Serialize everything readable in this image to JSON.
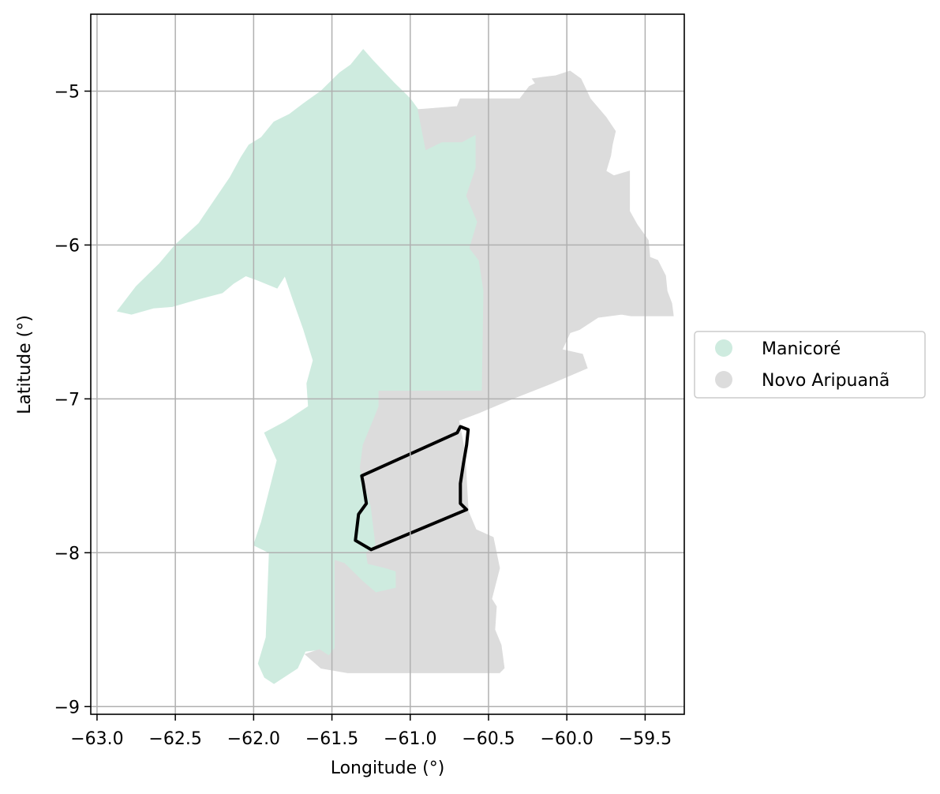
{
  "chart_data": {
    "type": "choropleth-map",
    "xlabel": "Longitude (°)",
    "ylabel": "Latitude (°)",
    "xlim": [
      -63.04,
      -59.25
    ],
    "ylim": [
      -9.05,
      -4.5
    ],
    "x_ticks": [
      {
        "value": -63.0,
        "label": "−63.0"
      },
      {
        "value": -62.5,
        "label": "−62.5"
      },
      {
        "value": -62.0,
        "label": "−62.0"
      },
      {
        "value": -61.5,
        "label": "−61.5"
      },
      {
        "value": -61.0,
        "label": "−61.0"
      },
      {
        "value": -60.5,
        "label": "−60.5"
      },
      {
        "value": -60.0,
        "label": "−60.0"
      },
      {
        "value": -59.5,
        "label": "−59.5"
      }
    ],
    "y_ticks": [
      {
        "value": -5,
        "label": "−5"
      },
      {
        "value": -6,
        "label": "−6"
      },
      {
        "value": -7,
        "label": "−7"
      },
      {
        "value": -8,
        "label": "−8"
      },
      {
        "value": -9,
        "label": "−9"
      }
    ],
    "grid": true,
    "legend_position": "right",
    "regions": [
      {
        "name": "Manicoré",
        "color": "#ceebdf",
        "polygon": [
          [
            -62.87,
            -6.43
          ],
          [
            -62.75,
            -6.27
          ],
          [
            -62.6,
            -6.12
          ],
          [
            -62.5,
            -6.0
          ],
          [
            -62.35,
            -5.86
          ],
          [
            -62.25,
            -5.71
          ],
          [
            -62.15,
            -5.56
          ],
          [
            -62.08,
            -5.43
          ],
          [
            -62.03,
            -5.35
          ],
          [
            -61.95,
            -5.3
          ],
          [
            -61.87,
            -5.2
          ],
          [
            -61.77,
            -5.15
          ],
          [
            -61.68,
            -5.08
          ],
          [
            -61.57,
            -5.0
          ],
          [
            -61.52,
            -4.95
          ],
          [
            -61.45,
            -4.88
          ],
          [
            -61.38,
            -4.83
          ],
          [
            -61.3,
            -4.73
          ],
          [
            -61.24,
            -4.8
          ],
          [
            -61.1,
            -4.95
          ],
          [
            -61.0,
            -5.05
          ],
          [
            -60.95,
            -5.12
          ],
          [
            -60.73,
            -5.12
          ],
          [
            -60.73,
            -5.28
          ],
          [
            -60.9,
            -5.38
          ],
          [
            -60.8,
            -5.33
          ],
          [
            -60.67,
            -5.33
          ],
          [
            -60.58,
            -5.28
          ],
          [
            -60.58,
            -5.5
          ],
          [
            -60.64,
            -5.68
          ],
          [
            -60.57,
            -5.85
          ],
          [
            -60.62,
            -6.02
          ],
          [
            -60.56,
            -6.1
          ],
          [
            -60.53,
            -6.3
          ],
          [
            -60.54,
            -6.95
          ],
          [
            -60.79,
            -6.95
          ],
          [
            -61.2,
            -6.95
          ],
          [
            -61.2,
            -7.05
          ],
          [
            -61.22,
            -7.1
          ],
          [
            -61.3,
            -7.3
          ],
          [
            -61.32,
            -7.45
          ],
          [
            -61.25,
            -7.7
          ],
          [
            -61.22,
            -7.95
          ],
          [
            -61.28,
            -8.0
          ],
          [
            -61.27,
            -8.07
          ],
          [
            -61.15,
            -8.1
          ],
          [
            -61.09,
            -8.12
          ],
          [
            -61.09,
            -8.23
          ],
          [
            -61.22,
            -8.26
          ],
          [
            -61.3,
            -8.19
          ],
          [
            -61.42,
            -8.07
          ],
          [
            -61.48,
            -8.05
          ],
          [
            -61.48,
            -8.62
          ],
          [
            -61.52,
            -8.67
          ],
          [
            -61.58,
            -8.63
          ],
          [
            -61.67,
            -8.64
          ],
          [
            -61.72,
            -8.75
          ],
          [
            -61.87,
            -8.85
          ],
          [
            -61.93,
            -8.81
          ],
          [
            -61.97,
            -8.72
          ],
          [
            -61.92,
            -8.55
          ],
          [
            -61.9,
            -8.0
          ],
          [
            -62.0,
            -7.95
          ],
          [
            -61.95,
            -7.8
          ],
          [
            -61.85,
            -7.4
          ],
          [
            -61.93,
            -7.22
          ],
          [
            -61.8,
            -7.15
          ],
          [
            -61.65,
            -7.05
          ],
          [
            -61.66,
            -6.9
          ],
          [
            -61.62,
            -6.75
          ],
          [
            -61.68,
            -6.55
          ],
          [
            -61.75,
            -6.35
          ],
          [
            -61.8,
            -6.2
          ],
          [
            -61.85,
            -6.28
          ],
          [
            -61.97,
            -6.23
          ],
          [
            -62.05,
            -6.2
          ],
          [
            -62.13,
            -6.25
          ],
          [
            -62.2,
            -6.31
          ],
          [
            -62.35,
            -6.35
          ],
          [
            -62.52,
            -6.4
          ],
          [
            -62.64,
            -6.41
          ],
          [
            -62.78,
            -6.45
          ]
        ]
      },
      {
        "name": "Novo Aripuanã",
        "color": "#dcdcdc",
        "polygon": [
          [
            -60.95,
            -5.12
          ],
          [
            -60.7,
            -5.1
          ],
          [
            -60.68,
            -5.05
          ],
          [
            -60.3,
            -5.05
          ],
          [
            -60.24,
            -4.97
          ],
          [
            -60.2,
            -4.95
          ],
          [
            -60.22,
            -4.92
          ],
          [
            -60.15,
            -4.91
          ],
          [
            -60.07,
            -4.9
          ],
          [
            -59.98,
            -4.87
          ],
          [
            -59.91,
            -4.92
          ],
          [
            -59.85,
            -5.05
          ],
          [
            -59.75,
            -5.17
          ],
          [
            -59.69,
            -5.26
          ],
          [
            -59.71,
            -5.35
          ],
          [
            -59.72,
            -5.42
          ],
          [
            -59.75,
            -5.52
          ],
          [
            -59.7,
            -5.55
          ],
          [
            -59.6,
            -5.52
          ],
          [
            -59.6,
            -5.6
          ],
          [
            -59.6,
            -5.78
          ],
          [
            -59.55,
            -5.87
          ],
          [
            -59.48,
            -5.97
          ],
          [
            -59.47,
            -6.08
          ],
          [
            -59.42,
            -6.1
          ],
          [
            -59.37,
            -6.2
          ],
          [
            -59.36,
            -6.3
          ],
          [
            -59.33,
            -6.38
          ],
          [
            -59.32,
            -6.46
          ],
          [
            -59.59,
            -6.46
          ],
          [
            -59.65,
            -6.45
          ],
          [
            -59.8,
            -6.47
          ],
          [
            -59.92,
            -6.55
          ],
          [
            -59.98,
            -6.57
          ],
          [
            -60.03,
            -6.68
          ],
          [
            -59.9,
            -6.71
          ],
          [
            -59.87,
            -6.8
          ],
          [
            -60.1,
            -6.9
          ],
          [
            -60.35,
            -7.0
          ],
          [
            -60.56,
            -7.09
          ],
          [
            -60.69,
            -7.14
          ],
          [
            -60.65,
            -7.35
          ],
          [
            -60.64,
            -7.55
          ],
          [
            -60.63,
            -7.73
          ],
          [
            -60.58,
            -7.85
          ],
          [
            -60.47,
            -7.9
          ],
          [
            -60.45,
            -8.0
          ],
          [
            -60.43,
            -8.1
          ],
          [
            -60.48,
            -8.3
          ],
          [
            -60.45,
            -8.35
          ],
          [
            -60.46,
            -8.5
          ],
          [
            -60.42,
            -8.6
          ],
          [
            -60.4,
            -8.75
          ],
          [
            -60.43,
            -8.78
          ],
          [
            -60.6,
            -8.78
          ],
          [
            -61.0,
            -8.78
          ],
          [
            -61.2,
            -8.78
          ],
          [
            -61.4,
            -8.78
          ],
          [
            -61.57,
            -8.75
          ],
          [
            -61.67,
            -8.66
          ],
          [
            -61.58,
            -8.63
          ],
          [
            -61.52,
            -8.67
          ],
          [
            -61.48,
            -8.62
          ],
          [
            -61.48,
            -8.05
          ],
          [
            -61.42,
            -8.07
          ],
          [
            -61.3,
            -8.19
          ],
          [
            -61.22,
            -8.26
          ],
          [
            -61.09,
            -8.23
          ],
          [
            -61.09,
            -8.12
          ],
          [
            -61.15,
            -8.1
          ],
          [
            -61.27,
            -8.07
          ],
          [
            -61.28,
            -8.0
          ],
          [
            -61.22,
            -7.95
          ],
          [
            -61.25,
            -7.7
          ],
          [
            -61.32,
            -7.45
          ],
          [
            -61.3,
            -7.3
          ],
          [
            -61.22,
            -7.1
          ],
          [
            -61.2,
            -7.05
          ],
          [
            -61.2,
            -6.95
          ],
          [
            -60.79,
            -6.95
          ],
          [
            -60.54,
            -6.95
          ],
          [
            -60.53,
            -6.3
          ],
          [
            -60.56,
            -6.1
          ],
          [
            -60.62,
            -6.02
          ],
          [
            -60.57,
            -5.85
          ],
          [
            -60.64,
            -5.68
          ],
          [
            -60.58,
            -5.5
          ],
          [
            -60.58,
            -5.28
          ],
          [
            -60.67,
            -5.33
          ],
          [
            -60.8,
            -5.33
          ],
          [
            -60.9,
            -5.38
          ]
        ]
      }
    ],
    "outline": {
      "color": "#000000",
      "polygon": [
        [
          -60.7,
          -7.22
        ],
        [
          -60.68,
          -7.18
        ],
        [
          -60.63,
          -7.2
        ],
        [
          -60.64,
          -7.3
        ],
        [
          -60.66,
          -7.42
        ],
        [
          -60.68,
          -7.55
        ],
        [
          -60.68,
          -7.68
        ],
        [
          -60.64,
          -7.72
        ],
        [
          -61.25,
          -7.98
        ],
        [
          -61.35,
          -7.92
        ],
        [
          -61.33,
          -7.75
        ],
        [
          -61.28,
          -7.68
        ],
        [
          -61.3,
          -7.55
        ],
        [
          -61.31,
          -7.5
        ]
      ]
    },
    "legend": [
      {
        "label": "Manicoré",
        "color": "#ceebdf"
      },
      {
        "label": "Novo Aripuanã",
        "color": "#dcdcdc"
      }
    ]
  }
}
